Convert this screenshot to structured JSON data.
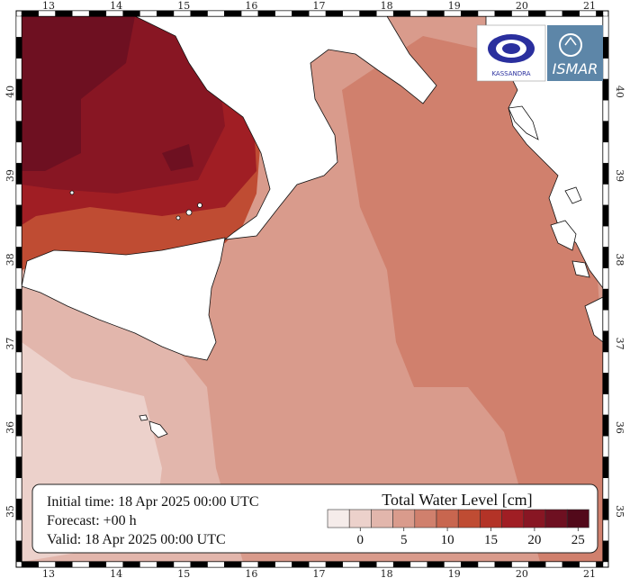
{
  "map": {
    "lon_ticks": [
      "13",
      "14",
      "15",
      "16",
      "17",
      "18",
      "19",
      "20",
      "21"
    ],
    "lat_ticks": [
      "35",
      "36",
      "37",
      "38",
      "39",
      "40"
    ],
    "lon_range": [
      12.6,
      21.2
    ],
    "lat_range": [
      34.4,
      40.9
    ],
    "land_color": "#ffffff"
  },
  "info": {
    "initial": "Initial time: 18 Apr 2025 00:00 UTC",
    "forecast": "Forecast: +00 h",
    "valid": "Valid: 18 Apr 2025 00:00 UTC"
  },
  "legend": {
    "title": "Total Water Level [cm]",
    "colors": [
      "#f5ecea",
      "#ecd1cb",
      "#e2b6ac",
      "#d99b8c",
      "#d0806d",
      "#c8664f",
      "#bf4c33",
      "#b33327",
      "#a01e24",
      "#881623",
      "#6e1021",
      "#52091a"
    ],
    "labels": [
      "0",
      "5",
      "10",
      "15",
      "20",
      "25"
    ],
    "label_bins": [
      2,
      4,
      6,
      8,
      10,
      12
    ]
  },
  "logos": {
    "left_text": "KASSANDRA",
    "right_text": "ISMAR"
  }
}
